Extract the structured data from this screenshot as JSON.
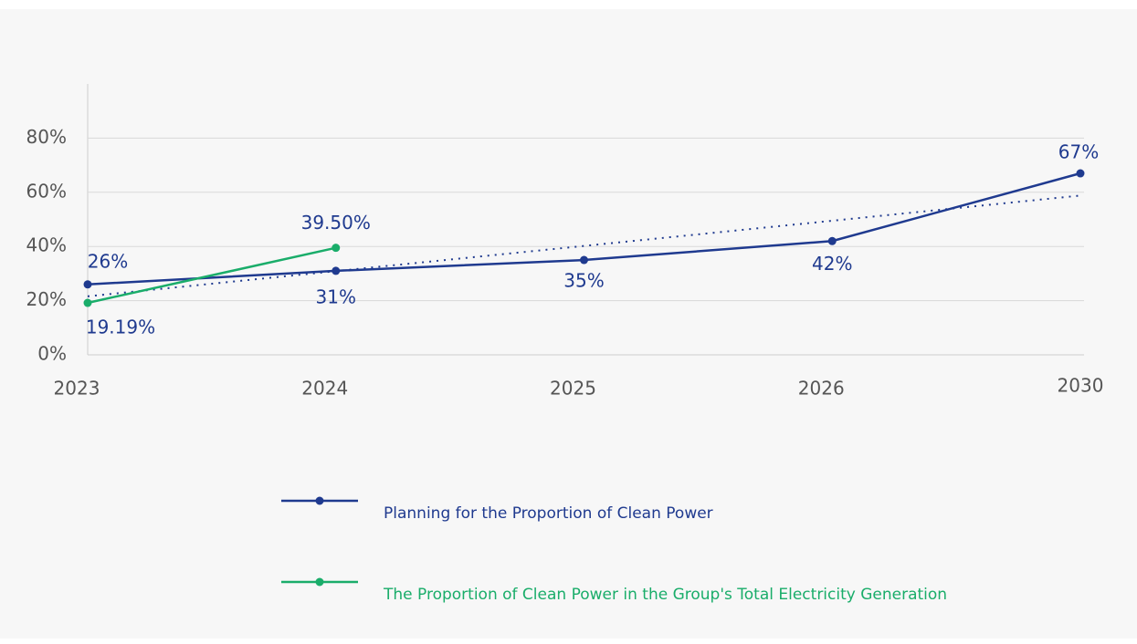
{
  "chart_data": {
    "type": "line",
    "categories": [
      "2023",
      "2024",
      "2025",
      "2026",
      "2030"
    ],
    "series": [
      {
        "name": "Planning for the Proportion of Clean Power",
        "color": "#1f3a8f",
        "values": [
          26,
          31,
          35,
          42,
          67
        ],
        "value_labels": [
          "26%",
          "31%",
          "35%",
          "42%",
          "67%"
        ]
      },
      {
        "name": "The Proportion of Clean Power in the Group's Total Electricity Generation",
        "color": "#1aad6a",
        "values": [
          19.19,
          39.5,
          null,
          null,
          null
        ],
        "value_labels": [
          "19.19%",
          "39.50%",
          null,
          null,
          null
        ]
      }
    ],
    "trendline": "linear",
    "ylim": [
      0,
      100
    ],
    "yticks": [
      {
        "value": 0,
        "label": "0%"
      },
      {
        "value": 20,
        "label": "20%"
      },
      {
        "value": 40,
        "label": "40%"
      },
      {
        "value": 60,
        "label": "60%"
      },
      {
        "value": 80,
        "label": "80%"
      }
    ],
    "grid": true
  }
}
